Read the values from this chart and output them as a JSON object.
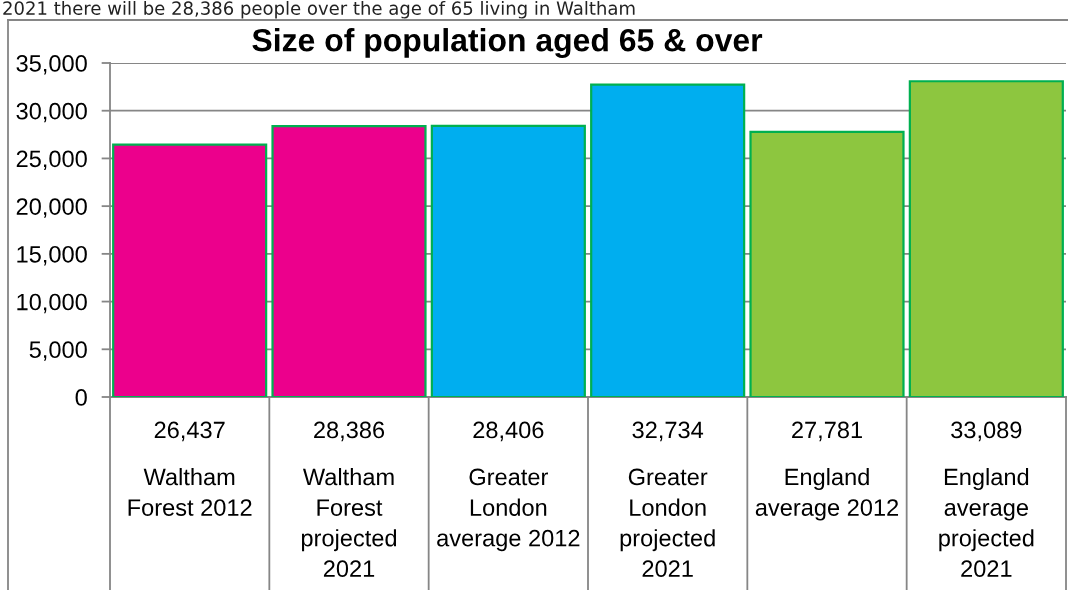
{
  "chart_data": {
    "type": "bar",
    "title": "Size of population aged 65 & over",
    "annotations": [
      "2021 there will be 28,386 people over the age of 65 living in Waltham"
    ],
    "categories": [
      "Waltham Forest 2012",
      "Waltham Forest projected 2021",
      "Greater London average 2012",
      "Greater London projected 2021",
      "England average 2012",
      "England average projected 2021"
    ],
    "values": [
      26437,
      28386,
      28406,
      32734,
      27781,
      33089
    ],
    "colors": [
      "#ec008c",
      "#ec008c",
      "#00aeef",
      "#00aeef",
      "#8dc63f",
      "#8dc63f"
    ],
    "value_labels": [
      "26,437",
      "28,386",
      "28,406",
      "32,734",
      "27,781",
      "33,089"
    ],
    "ylim": [
      0,
      35000
    ],
    "yticks": [
      0,
      {
        "value": 5000,
        "label": "5,000"
      },
      {
        "value": 10000,
        "label": "10,000"
      },
      {
        "value": 15000,
        "label": "15,000"
      },
      {
        "value": 20000,
        "label": "20,000"
      },
      {
        "value": 25000,
        "label": "25,000"
      },
      {
        "value": 30000,
        "label": "30,000"
      },
      {
        "value": 35000,
        "label": "35,000"
      }
    ],
    "grid": "y"
  }
}
